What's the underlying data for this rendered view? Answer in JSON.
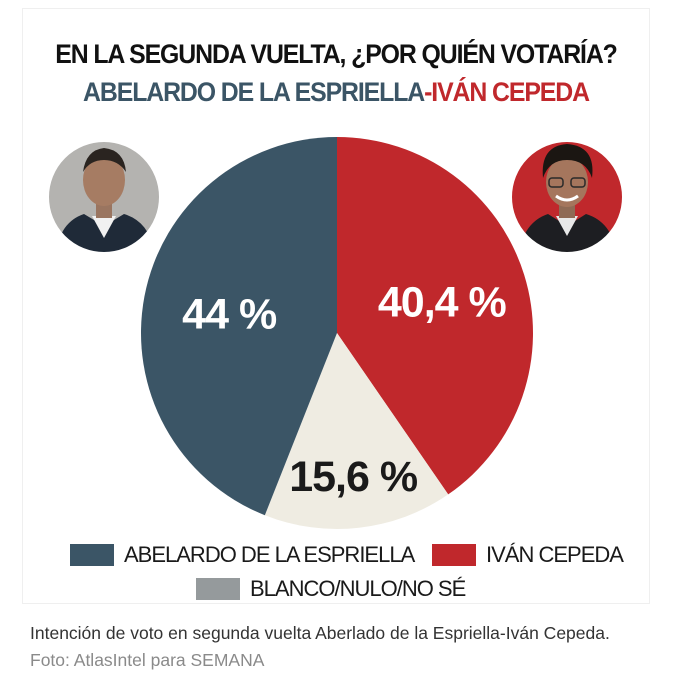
{
  "title": {
    "line1": "EN LA SEGUNDA VUELTA, ¿POR QUIÉN VOTARÍA?",
    "line2_a": "ABELARDO DE LA ESPRIELLA",
    "line2_sep": "-",
    "line2_b": "IVÁN CEPEDA"
  },
  "colors": {
    "espriella": "#3b5566",
    "cepeda": "#c0282c",
    "blanco": "#efece2",
    "blanco_legend": "#959a9c"
  },
  "chart_data": {
    "type": "pie",
    "slices": [
      {
        "label": "ABELARDO DE LA ESPRIELLA",
        "value": 44,
        "display": "44 %"
      },
      {
        "label": "IVÁN CEPEDA",
        "value": 40.4,
        "display": "40,4 %"
      },
      {
        "label": "BLANCO/NULO/NO SÉ",
        "value": 15.6,
        "display": "15,6 %"
      }
    ],
    "legend_position": "bottom"
  },
  "legend": {
    "espriella": "ABELARDO DE LA ESPRIELLA",
    "cepeda": "IVÁN CEPEDA",
    "blanco": "BLANCO/NULO/NO SÉ"
  },
  "images": {
    "left": "candidate-portrait-espriella",
    "right": "candidate-portrait-cepeda"
  },
  "caption": {
    "text": "Intención de voto en segunda vuelta Aberlado de la Espriella-Iván Cepeda.",
    "credit": "Foto: AtlasIntel para SEMANA"
  }
}
